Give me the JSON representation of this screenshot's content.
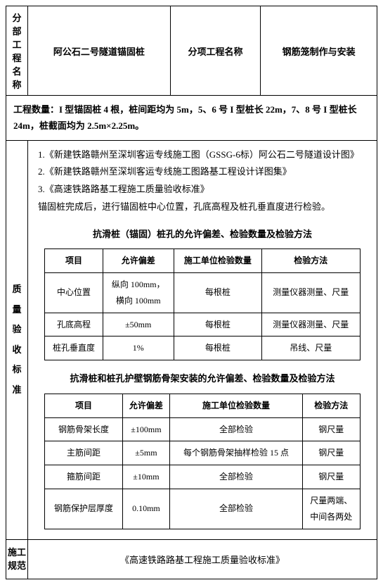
{
  "header": {
    "c1_label": "分部工程名称",
    "c1_value": "阿公石二号隧道锚固桩",
    "c2_label": "分项工程名称",
    "c2_value": "钢筋笼制作与安装"
  },
  "quantity": "工程数量：I 型锚固桩 4 根，桩间距均为 5m，5、6 号 I 型桩长 22m，7、8 号 I 型桩长 24m，桩截面均为 2.5m×2.25m。",
  "quality_label": "质\n量\n验\n收\n标\n准",
  "refs": {
    "r1": "1.《新建铁路赣州至深圳客运专线施工图（GSSG-6标）阿公石二号隧道设计图》",
    "r2": "2.《新建铁路赣州至深圳客运专线施工图路基工程设计详图集》",
    "r3": "3.《高速铁路路基工程施工质量验收标准》",
    "note": "锚固桩完成后，进行锚固桩中心位置，孔底高程及桩孔垂直度进行检验。"
  },
  "table1": {
    "title": "抗滑桩（锚固）桩孔的允许偏差、检验数量及检验方法",
    "h1": "项目",
    "h2": "允许偏差",
    "h3": "施工单位检验数量",
    "h4": "检验方法",
    "r1": {
      "c1": "中心位置",
      "c2": "纵向 100mm，\n横向 100mm",
      "c3": "每根桩",
      "c4": "测量仪器测量、尺量"
    },
    "r2": {
      "c1": "孔底高程",
      "c2": "±50mm",
      "c3": "每根桩",
      "c4": "测量仪器测量、尺量"
    },
    "r3": {
      "c1": "桩孔垂直度",
      "c2": "1%",
      "c3": "每根桩",
      "c4": "吊线、尺量"
    }
  },
  "table2": {
    "title": "抗滑桩和桩孔护壁钢筋骨架安装的允许偏差、检验数量及检验方法",
    "h1": "项目",
    "h2": "允许偏差",
    "h3": "施工单位检验数量",
    "h4": "检验方法",
    "r1": {
      "c1": "钢筋骨架长度",
      "c2": "±100mm",
      "c3": "全部检验",
      "c4": "钢尺量"
    },
    "r2": {
      "c1": "主筋间距",
      "c2": "±5mm",
      "c3": "每个钢筋骨架抽样检验 15 点",
      "c4": "钢尺量"
    },
    "r3": {
      "c1": "箍筋间距",
      "c2": "±10mm",
      "c3": "全部检验",
      "c4": "钢尺量"
    },
    "r4": {
      "c1": "钢筋保护层厚度",
      "c2": "0.10mm",
      "c3": "全部检验",
      "c4": "尺量两端、\n中间各两处"
    }
  },
  "norm": {
    "label": "施工\n规范",
    "value": "《高速铁路路基工程施工质量验收标准》"
  }
}
